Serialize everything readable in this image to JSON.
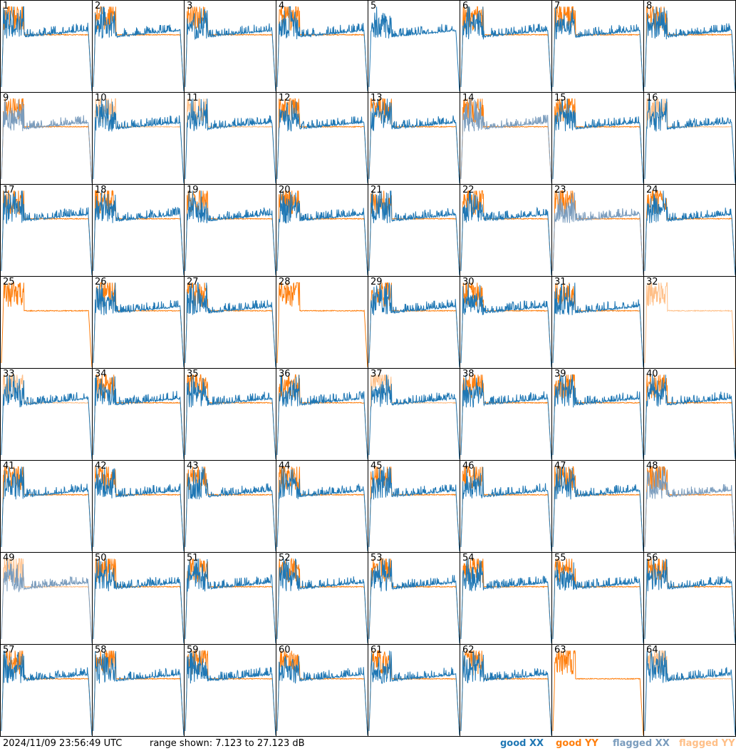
{
  "footer": {
    "timestamp": "2024/11/09 23:56:49 UTC",
    "range_text": "range shown: 7.123 to 27.123 dB"
  },
  "legend": {
    "good_xx": "good XX",
    "good_yy": "good YY",
    "flagged_xx": "flagged XX",
    "flagged_yy": "flagged YY"
  },
  "colors": {
    "good_xx": "#1f77b4",
    "good_yy": "#ff7f0e",
    "flagged_xx": "#7a9cbd",
    "flagged_yy": "#ffbf87"
  },
  "chart_data": {
    "type": "line",
    "panel_count": 64,
    "grid": "8x8",
    "ylim": [
      7.123,
      27.123
    ],
    "yunit": "dB",
    "panels": [
      {
        "id": "1",
        "xx": "A",
        "yy": "A"
      },
      {
        "id": "2",
        "xx": "A",
        "yy": "A"
      },
      {
        "id": "3",
        "xx": "A",
        "yy": "A"
      },
      {
        "id": "4",
        "xx": "A",
        "yy": "A"
      },
      {
        "id": "5",
        "xx": "A",
        "yy": "N"
      },
      {
        "id": "6",
        "xx": "A",
        "yy": "A"
      },
      {
        "id": "7",
        "xx": "A",
        "yy": "A"
      },
      {
        "id": "8",
        "xx": "A",
        "yy": "A"
      },
      {
        "id": "9",
        "xx": "F",
        "yy": "A"
      },
      {
        "id": "10",
        "xx": "A",
        "yy": "F"
      },
      {
        "id": "11",
        "xx": "A",
        "yy": "F"
      },
      {
        "id": "12",
        "xx": "A",
        "yy": "A"
      },
      {
        "id": "13",
        "xx": "A",
        "yy": "A"
      },
      {
        "id": "14",
        "xx": "F",
        "yy": "A"
      },
      {
        "id": "15",
        "xx": "A",
        "yy": "A"
      },
      {
        "id": "16",
        "xx": "A",
        "yy": "F"
      },
      {
        "id": "17",
        "xx": "A",
        "yy": "A"
      },
      {
        "id": "18",
        "xx": "A",
        "yy": "A"
      },
      {
        "id": "19",
        "xx": "A",
        "yy": "A"
      },
      {
        "id": "20",
        "xx": "A",
        "yy": "A"
      },
      {
        "id": "21",
        "xx": "A",
        "yy": "A"
      },
      {
        "id": "22",
        "xx": "A",
        "yy": "A"
      },
      {
        "id": "23",
        "xx": "F",
        "yy": "A"
      },
      {
        "id": "24",
        "xx": "A",
        "yy": "A"
      },
      {
        "id": "25",
        "xx": "N",
        "yy": "A"
      },
      {
        "id": "26",
        "xx": "A",
        "yy": "A"
      },
      {
        "id": "27",
        "xx": "A",
        "yy": "A"
      },
      {
        "id": "28",
        "xx": "N",
        "yy": "A"
      },
      {
        "id": "29",
        "xx": "A",
        "yy": "A"
      },
      {
        "id": "30",
        "xx": "A",
        "yy": "A"
      },
      {
        "id": "31",
        "xx": "A",
        "yy": "A"
      },
      {
        "id": "32",
        "xx": "N",
        "yy": "F"
      },
      {
        "id": "33",
        "xx": "A",
        "yy": "F"
      },
      {
        "id": "34",
        "xx": "A",
        "yy": "A"
      },
      {
        "id": "35",
        "xx": "A",
        "yy": "A"
      },
      {
        "id": "36",
        "xx": "A",
        "yy": "A"
      },
      {
        "id": "37",
        "xx": "A",
        "yy": "F"
      },
      {
        "id": "38",
        "xx": "A",
        "yy": "A"
      },
      {
        "id": "39",
        "xx": "A",
        "yy": "A"
      },
      {
        "id": "40",
        "xx": "A",
        "yy": "A"
      },
      {
        "id": "41",
        "xx": "A",
        "yy": "A"
      },
      {
        "id": "42",
        "xx": "A",
        "yy": "A"
      },
      {
        "id": "43",
        "xx": "A",
        "yy": "A"
      },
      {
        "id": "44",
        "xx": "A",
        "yy": "A"
      },
      {
        "id": "45",
        "xx": "A",
        "yy": "A"
      },
      {
        "id": "46",
        "xx": "A",
        "yy": "A"
      },
      {
        "id": "47",
        "xx": "A",
        "yy": "A"
      },
      {
        "id": "48",
        "xx": "F",
        "yy": "A"
      },
      {
        "id": "49",
        "xx": "F",
        "yy": "F"
      },
      {
        "id": "50",
        "xx": "A",
        "yy": "A"
      },
      {
        "id": "51",
        "xx": "A",
        "yy": "A"
      },
      {
        "id": "52",
        "xx": "A",
        "yy": "A"
      },
      {
        "id": "53",
        "xx": "A",
        "yy": "A"
      },
      {
        "id": "54",
        "xx": "A",
        "yy": "A"
      },
      {
        "id": "55",
        "xx": "A",
        "yy": "A"
      },
      {
        "id": "56",
        "xx": "A",
        "yy": "A"
      },
      {
        "id": "57",
        "xx": "A",
        "yy": "A"
      },
      {
        "id": "58",
        "xx": "A",
        "yy": "A"
      },
      {
        "id": "59",
        "xx": "A",
        "yy": "A"
      },
      {
        "id": "60",
        "xx": "A",
        "yy": "A"
      },
      {
        "id": "61",
        "xx": "A",
        "yy": "A"
      },
      {
        "id": "62",
        "xx": "A",
        "yy": "A"
      },
      {
        "id": "63",
        "xx": "N",
        "yy": "A"
      },
      {
        "id": "64",
        "xx": "A",
        "yy": "F"
      }
    ]
  }
}
